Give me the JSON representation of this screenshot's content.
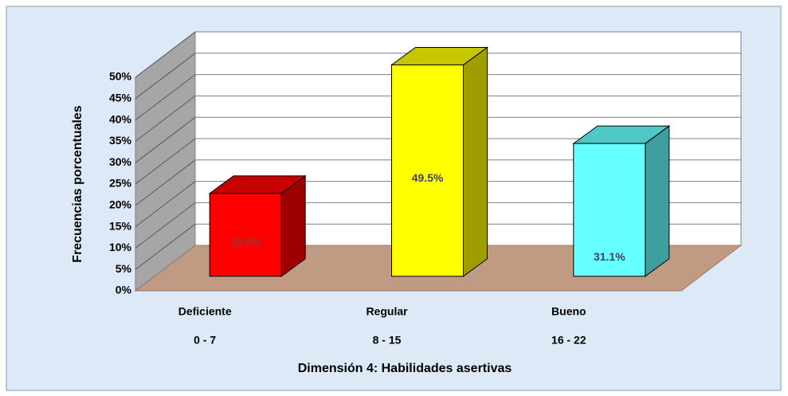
{
  "chart_data": {
    "type": "bar3d",
    "x_label": "Dimensión 4: Habilidades asertivas",
    "y_label": "Frecuencias porcentuales",
    "categories": [
      [
        "Deficiente",
        "0 - 7"
      ],
      [
        "Regular",
        "8 - 15"
      ],
      [
        "Bueno",
        "16 - 22"
      ]
    ],
    "values": [
      19.4,
      49.5,
      31.1
    ],
    "value_labels": [
      "19.4%",
      "49.5%",
      "31.1%"
    ],
    "colors": [
      "#ff0000",
      "#ffff00",
      "#66ffff"
    ],
    "ylim": [
      0,
      50
    ],
    "yticks": [
      {
        "value": 0,
        "label": "0%"
      },
      {
        "value": 5,
        "label": "5%"
      },
      {
        "value": 10,
        "label": "10%"
      },
      {
        "value": 15,
        "label": "15%"
      },
      {
        "value": 20,
        "label": "20%"
      },
      {
        "value": 25,
        "label": "25%"
      },
      {
        "value": 30,
        "label": "30%"
      },
      {
        "value": 35,
        "label": "35%"
      },
      {
        "value": 40,
        "label": "40%"
      },
      {
        "value": 45,
        "label": "45%"
      },
      {
        "value": 50,
        "label": "50%"
      }
    ],
    "grid": true
  }
}
